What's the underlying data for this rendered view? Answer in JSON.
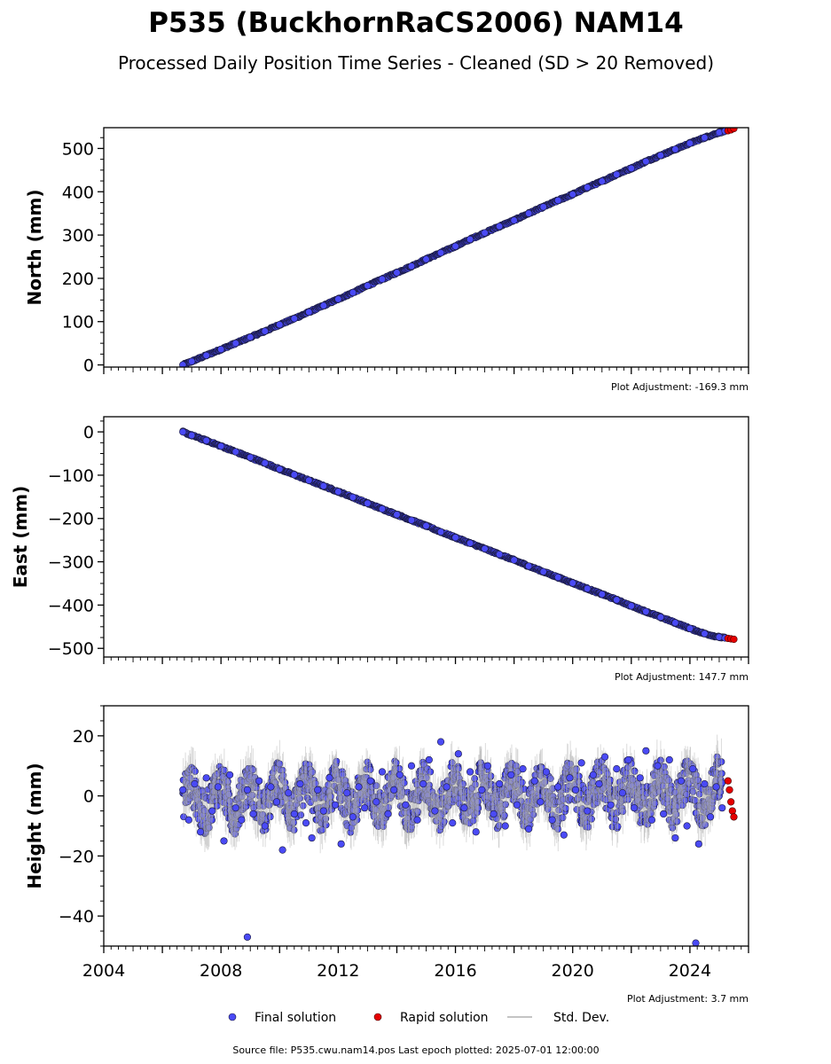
{
  "title": "P535 (BuckhornRaCS2006) NAM14",
  "subtitle": "Processed Daily Position Time Series - Cleaned (SD > 20 Removed)",
  "footer": "Source file: P535.cwu.nam14.pos  Last epoch plotted: 2025-07-01 12:00:00",
  "colors": {
    "final": "#4a4af5",
    "final_edge": "#1a1a40",
    "rapid": "#e60000",
    "std": "#b0b0b0"
  },
  "chart_data": [
    {
      "type": "scatter",
      "ylabel": "North (mm)",
      "xlim": [
        2004.0,
        2026.0
      ],
      "ylim": [
        -5,
        548
      ],
      "yticks": [
        0,
        100,
        200,
        300,
        400,
        500
      ],
      "xticks": [
        2004,
        2008,
        2012,
        2016,
        2020,
        2024
      ],
      "show_xtick_labels": false,
      "adjustment": "Plot Adjustment: -169.3 mm",
      "series": [
        {
          "name": "Final solution",
          "x": [
            2006.7,
            2007.0,
            2007.5,
            2008.0,
            2008.5,
            2009.0,
            2009.5,
            2010.0,
            2010.5,
            2011.0,
            2011.5,
            2012.0,
            2012.5,
            2013.0,
            2013.5,
            2014.0,
            2014.5,
            2015.0,
            2015.5,
            2016.0,
            2016.5,
            2017.0,
            2017.5,
            2018.0,
            2018.5,
            2019.0,
            2019.5,
            2020.0,
            2020.5,
            2021.0,
            2021.5,
            2022.0,
            2022.5,
            2023.0,
            2023.5,
            2024.0,
            2024.5,
            2025.0,
            2025.2
          ],
          "y": [
            0,
            8,
            22,
            36,
            50,
            64,
            78,
            93,
            107,
            122,
            137,
            152,
            167,
            183,
            198,
            213,
            228,
            244,
            259,
            274,
            290,
            305,
            320,
            334,
            350,
            365,
            380,
            394,
            410,
            424,
            440,
            454,
            470,
            484,
            498,
            512,
            525,
            537,
            540
          ]
        },
        {
          "name": "Rapid solution",
          "x": [
            2025.3,
            2025.4,
            2025.5
          ],
          "y": [
            541,
            543,
            546
          ]
        }
      ]
    },
    {
      "type": "scatter",
      "ylabel": "East (mm)",
      "xlim": [
        2004.0,
        2026.0
      ],
      "ylim": [
        -520,
        35
      ],
      "yticks": [
        0,
        -100,
        -200,
        -300,
        -400,
        -500
      ],
      "ytick_labels": [
        "0",
        "−100",
        "−200",
        "−300",
        "−400",
        "−500"
      ],
      "xticks": [
        2004,
        2008,
        2012,
        2016,
        2020,
        2024
      ],
      "show_xtick_labels": false,
      "adjustment": "Plot Adjustment: 147.7 mm",
      "series": [
        {
          "name": "Final solution",
          "x": [
            2006.7,
            2007.0,
            2007.5,
            2008.0,
            2008.5,
            2009.0,
            2009.5,
            2010.0,
            2010.5,
            2011.0,
            2011.5,
            2012.0,
            2012.5,
            2013.0,
            2013.5,
            2014.0,
            2014.5,
            2015.0,
            2015.5,
            2016.0,
            2016.5,
            2017.0,
            2017.5,
            2018.0,
            2018.5,
            2019.0,
            2019.5,
            2020.0,
            2020.5,
            2021.0,
            2021.5,
            2022.0,
            2022.5,
            2023.0,
            2023.5,
            2024.0,
            2024.5,
            2025.0,
            2025.2
          ],
          "y": [
            0,
            -8,
            -20,
            -33,
            -46,
            -59,
            -72,
            -86,
            -99,
            -112,
            -125,
            -138,
            -151,
            -165,
            -178,
            -191,
            -204,
            -217,
            -231,
            -244,
            -257,
            -270,
            -283,
            -296,
            -310,
            -323,
            -336,
            -349,
            -362,
            -375,
            -388,
            -402,
            -415,
            -428,
            -441,
            -454,
            -466,
            -474,
            -476
          ]
        },
        {
          "name": "Rapid solution",
          "x": [
            2025.3,
            2025.4,
            2025.5
          ],
          "y": [
            -477,
            -478,
            -479
          ]
        }
      ]
    },
    {
      "type": "scatter",
      "ylabel": "Height (mm)",
      "xlim": [
        2004.0,
        2026.0
      ],
      "ylim": [
        -50,
        30
      ],
      "yticks": [
        20,
        0,
        -20,
        -40
      ],
      "ytick_labels": [
        "20",
        "0",
        "−20",
        "−40"
      ],
      "xticks": [
        2004,
        2008,
        2012,
        2016,
        2020,
        2024
      ],
      "xtick_labels": [
        "2004",
        "2008",
        "2012",
        "2016",
        "2020",
        "2024"
      ],
      "show_xtick_labels": true,
      "adjustment": "Plot Adjustment: 3.7 mm",
      "series": [
        {
          "name": "Final solution",
          "x": [
            2006.7,
            2006.9,
            2007.1,
            2007.3,
            2007.5,
            2007.7,
            2007.9,
            2008.1,
            2008.3,
            2008.5,
            2008.7,
            2008.9,
            2009.1,
            2009.3,
            2009.5,
            2009.7,
            2009.9,
            2010.1,
            2010.3,
            2010.5,
            2010.7,
            2010.9,
            2011.1,
            2011.3,
            2011.5,
            2011.7,
            2011.9,
            2012.1,
            2012.3,
            2012.5,
            2012.7,
            2012.9,
            2013.1,
            2013.3,
            2013.5,
            2013.7,
            2013.9,
            2014.1,
            2014.3,
            2014.5,
            2014.7,
            2014.9,
            2015.1,
            2015.3,
            2015.5,
            2015.7,
            2015.9,
            2016.1,
            2016.3,
            2016.5,
            2016.7,
            2016.9,
            2017.1,
            2017.3,
            2017.5,
            2017.7,
            2017.9,
            2018.1,
            2018.3,
            2018.5,
            2018.7,
            2018.9,
            2019.1,
            2019.3,
            2019.5,
            2019.7,
            2019.9,
            2020.1,
            2020.3,
            2020.5,
            2020.7,
            2020.9,
            2021.1,
            2021.3,
            2021.5,
            2021.7,
            2021.9,
            2022.1,
            2022.3,
            2022.5,
            2022.7,
            2022.9,
            2023.1,
            2023.3,
            2023.5,
            2023.7,
            2023.9,
            2024.1,
            2024.3,
            2024.5,
            2024.7,
            2024.9,
            2025.1,
            2008.9,
            2024.2
          ],
          "y": [
            2,
            -8,
            4,
            -12,
            6,
            -5,
            3,
            -15,
            7,
            -4,
            -8,
            2,
            -6,
            5,
            -10,
            3,
            -2,
            -18,
            1,
            -6,
            4,
            -9,
            -14,
            2,
            -5,
            6,
            -3,
            -16,
            1,
            -7,
            3,
            -4,
            5,
            -2,
            8,
            -6,
            2,
            7,
            -3,
            10,
            -8,
            4,
            12,
            -5,
            18,
            3,
            -9,
            14,
            -4,
            8,
            -12,
            2,
            10,
            -6,
            4,
            -10,
            7,
            -3,
            9,
            -11,
            5,
            -2,
            8,
            -8,
            3,
            -13,
            6,
            2,
            11,
            -5,
            7,
            4,
            13,
            -3,
            9,
            1,
            12,
            -4,
            6,
            15,
            -8,
            10,
            -6,
            12,
            -14,
            5,
            -10,
            9,
            -16,
            4,
            -7,
            3,
            -4,
            -47,
            -49
          ]
        },
        {
          "name": "Rapid solution",
          "x": [
            2025.3,
            2025.35,
            2025.4,
            2025.45,
            2025.5
          ],
          "y": [
            5,
            2,
            -2,
            -5,
            -7
          ]
        }
      ]
    }
  ],
  "legend": {
    "placement": "bottom-center",
    "items": [
      {
        "label": "Final solution",
        "kind": "marker",
        "color": "#4a4af5"
      },
      {
        "label": "Rapid solution",
        "kind": "marker",
        "color": "#e60000"
      },
      {
        "label": "Std. Dev.",
        "kind": "line",
        "color": "#b0b0b0"
      }
    ]
  }
}
